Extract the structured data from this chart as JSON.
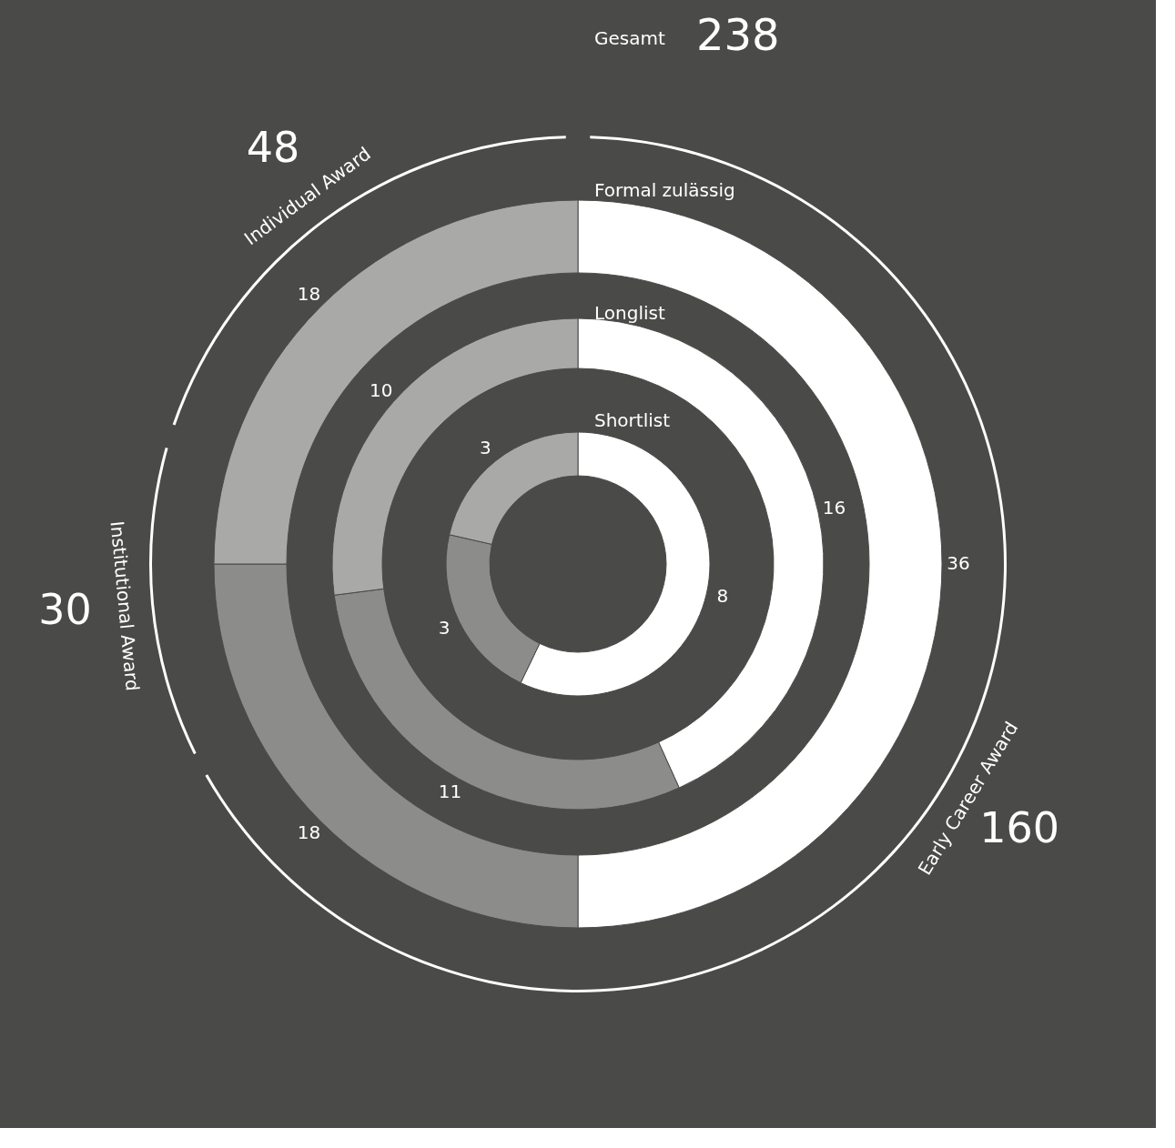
{
  "chart_data": {
    "type": "donut",
    "categories": [
      "Early Career Award",
      "Institutional Award",
      "Individual Award"
    ],
    "series": [
      {
        "name": "Gesamt",
        "values": [
          160,
          30,
          48
        ],
        "colors": [
          "#ffffff",
          "#ffffff",
          "#ffffff"
        ]
      },
      {
        "name": "Formal zulässig",
        "values": [
          36,
          18,
          18
        ],
        "colors": [
          "#ffffff",
          "#8c8c8a",
          "#a9a9a7"
        ]
      },
      {
        "name": "Longlist",
        "values": [
          16,
          11,
          10
        ],
        "colors": [
          "#ffffff",
          "#8c8c8a",
          "#a9a9a7"
        ]
      },
      {
        "name": "Shortlist",
        "values": [
          8,
          3,
          3
        ],
        "colors": [
          "#ffffff",
          "#8c8c8a",
          "#a9a9a7"
        ]
      }
    ],
    "data_labels": true,
    "annotations": [
      "238"
    ]
  }
}
